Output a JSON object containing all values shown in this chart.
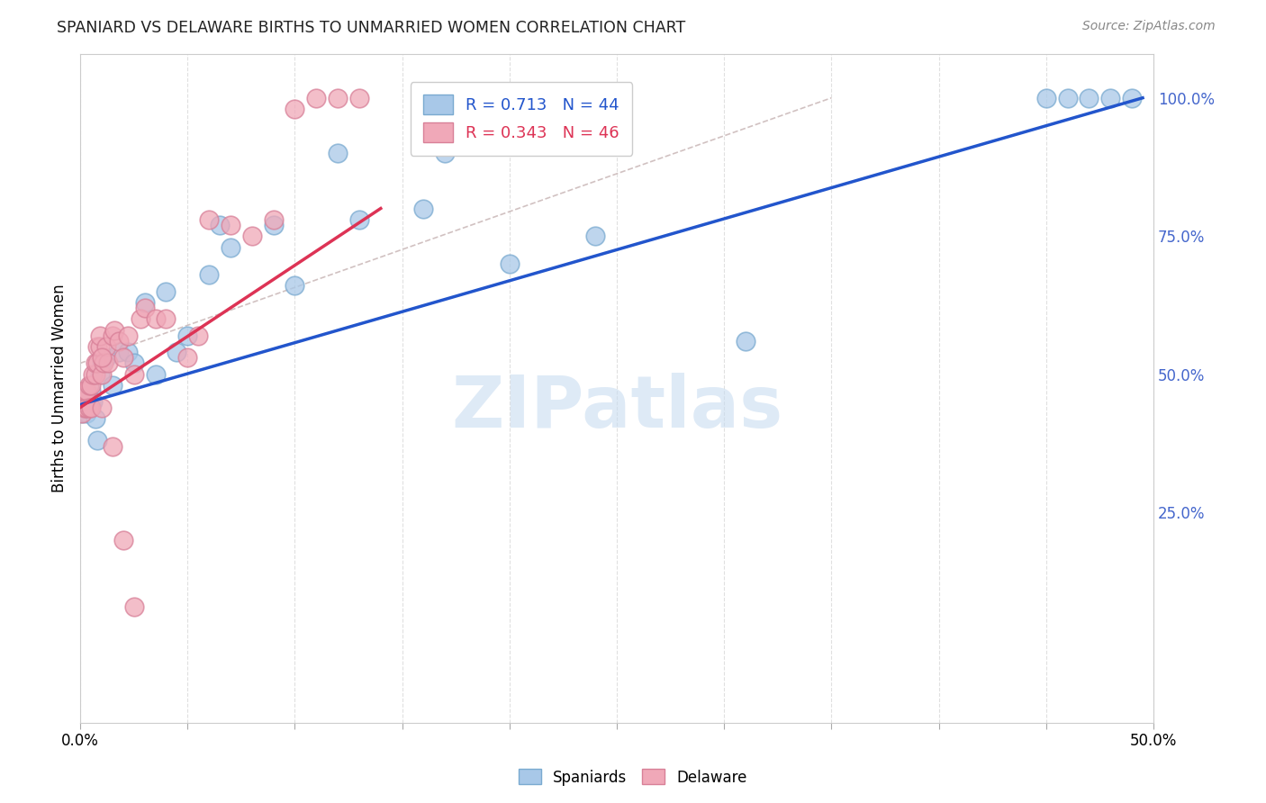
{
  "title": "SPANIARD VS DELAWARE BIRTHS TO UNMARRIED WOMEN CORRELATION CHART",
  "source": "Source: ZipAtlas.com",
  "ylabel": "Births to Unmarried Women",
  "R_spaniards": 0.713,
  "N_spaniards": 44,
  "R_delaware": 0.343,
  "N_delaware": 46,
  "blue_color": "#a8c8e8",
  "pink_color": "#f0a8b8",
  "blue_edge": "#7aaad0",
  "pink_edge": "#d88098",
  "blue_line_color": "#2255cc",
  "pink_line_color": "#dd3355",
  "dash_line_color": "#ccbbbb",
  "grid_color": "#e0e0e0",
  "watermark_color": "#c8dcf0",
  "watermark_text": "ZIPatlas",
  "right_tick_color": "#4466cc",
  "xlim": [
    0.0,
    0.5
  ],
  "ylim": [
    -0.13,
    1.08
  ],
  "xtick_vals": [
    0.0,
    0.05,
    0.1,
    0.15,
    0.2,
    0.25,
    0.3,
    0.35,
    0.4,
    0.45,
    0.5
  ],
  "ytick_right_vals": [
    0.25,
    0.5,
    0.75,
    1.0
  ],
  "ytick_right_labels": [
    "25.0%",
    "50.0%",
    "75.0%",
    "100.0%"
  ],
  "spaniards_x": [
    0.001,
    0.001,
    0.001,
    0.002,
    0.002,
    0.002,
    0.003,
    0.003,
    0.003,
    0.004,
    0.005,
    0.005,
    0.006,
    0.007,
    0.008,
    0.009,
    0.01,
    0.012,
    0.015,
    0.018,
    0.022,
    0.025,
    0.03,
    0.035,
    0.04,
    0.045,
    0.05,
    0.06,
    0.065,
    0.07,
    0.09,
    0.1,
    0.12,
    0.13,
    0.16,
    0.17,
    0.2,
    0.24,
    0.31,
    0.45,
    0.46,
    0.47,
    0.48,
    0.49
  ],
  "spaniards_y": [
    0.43,
    0.44,
    0.46,
    0.44,
    0.46,
    0.47,
    0.43,
    0.44,
    0.46,
    0.45,
    0.45,
    0.47,
    0.45,
    0.42,
    0.38,
    0.5,
    0.52,
    0.53,
    0.48,
    0.54,
    0.54,
    0.52,
    0.63,
    0.5,
    0.65,
    0.54,
    0.57,
    0.68,
    0.77,
    0.73,
    0.77,
    0.66,
    0.9,
    0.78,
    0.8,
    0.9,
    0.7,
    0.75,
    0.56,
    1.0,
    1.0,
    1.0,
    1.0,
    1.0
  ],
  "delaware_x": [
    0.001,
    0.001,
    0.002,
    0.002,
    0.003,
    0.003,
    0.004,
    0.004,
    0.005,
    0.005,
    0.006,
    0.007,
    0.007,
    0.008,
    0.008,
    0.009,
    0.009,
    0.01,
    0.01,
    0.011,
    0.012,
    0.013,
    0.015,
    0.016,
    0.018,
    0.02,
    0.022,
    0.025,
    0.028,
    0.03,
    0.035,
    0.04,
    0.05,
    0.055,
    0.06,
    0.07,
    0.08,
    0.09,
    0.1,
    0.11,
    0.12,
    0.13,
    0.01,
    0.015,
    0.02,
    0.025
  ],
  "delaware_y": [
    0.43,
    0.45,
    0.44,
    0.47,
    0.44,
    0.47,
    0.44,
    0.48,
    0.44,
    0.48,
    0.5,
    0.5,
    0.52,
    0.52,
    0.55,
    0.55,
    0.57,
    0.44,
    0.5,
    0.52,
    0.55,
    0.52,
    0.57,
    0.58,
    0.56,
    0.53,
    0.57,
    0.5,
    0.6,
    0.62,
    0.6,
    0.6,
    0.53,
    0.57,
    0.78,
    0.77,
    0.75,
    0.78,
    0.98,
    1.0,
    1.0,
    1.0,
    0.53,
    0.37,
    0.2,
    0.08
  ],
  "blue_line_x0": 0.0,
  "blue_line_y0": 0.445,
  "blue_line_x1": 0.495,
  "blue_line_y1": 1.0,
  "pink_line_x0": 0.0,
  "pink_line_y0": 0.44,
  "pink_line_x1": 0.14,
  "pink_line_y1": 0.8,
  "dash_line_x0": 0.0,
  "dash_line_y0": 0.52,
  "dash_line_x1": 0.35,
  "dash_line_y1": 1.0
}
